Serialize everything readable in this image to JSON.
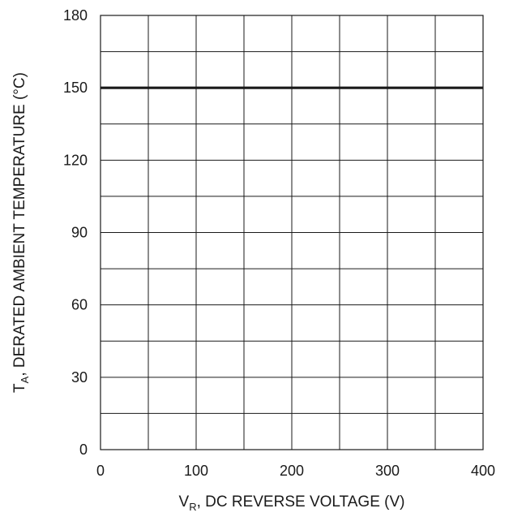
{
  "chart_data": {
    "type": "line",
    "title": "",
    "xlabel": {
      "symbol": "V",
      "subscript": "R",
      "text": ", DC REVERSE VOLTAGE (V)"
    },
    "ylabel": {
      "symbol": "T",
      "subscript": "A",
      "text": ", DERATED AMBIENT TEMPERATURE (°C)"
    },
    "xlim": [
      0,
      400
    ],
    "ylim": [
      0,
      180
    ],
    "x_ticks": [
      0,
      100,
      200,
      300,
      400
    ],
    "y_ticks": [
      0,
      30,
      60,
      90,
      120,
      150,
      180
    ],
    "x_grid_step": 50,
    "y_grid_step": 15,
    "grid": true,
    "series": [
      {
        "x": [
          0,
          400
        ],
        "y": [
          150,
          150
        ],
        "color": "#1a1a1a"
      }
    ]
  }
}
